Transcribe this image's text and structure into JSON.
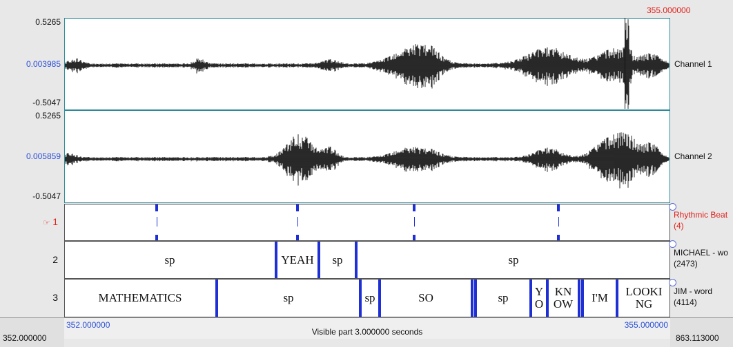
{
  "time": {
    "cursor_time": "355.000000",
    "window_start": "352.000000",
    "window_end": "863.113000",
    "visible_start": "352.000000",
    "visible_end": "355.000000",
    "visible_part": "Visible part 3.000000 seconds"
  },
  "channels": [
    {
      "name": "Channel 1",
      "max": "0.5265",
      "mid": "0.003985",
      "min": "-0.5047"
    },
    {
      "name": "Channel 2",
      "max": "0.5265",
      "mid": "0.005859",
      "min": "-0.5047"
    }
  ],
  "tiers": [
    {
      "number": "1",
      "name": "Rhythmic Beat",
      "count": "(4)",
      "active": true,
      "active_marker": "☞"
    },
    {
      "number": "2",
      "name": "MICHAEL - wo",
      "count": "(2473)",
      "intervals": [
        "sp",
        "YEAH",
        "sp",
        "sp"
      ]
    },
    {
      "number": "3",
      "name": "JIM - word",
      "count": "(4114)",
      "intervals": [
        "MATHEMATICS",
        "sp",
        "sp",
        "SO",
        "sp",
        "Y O",
        "KN OW",
        "I'M",
        "LOOKI NG"
      ]
    }
  ],
  "colors": {
    "accent": "#1e2fd6",
    "cursor_time": "#e0201a",
    "mid_amp": "#2a4fd6"
  }
}
